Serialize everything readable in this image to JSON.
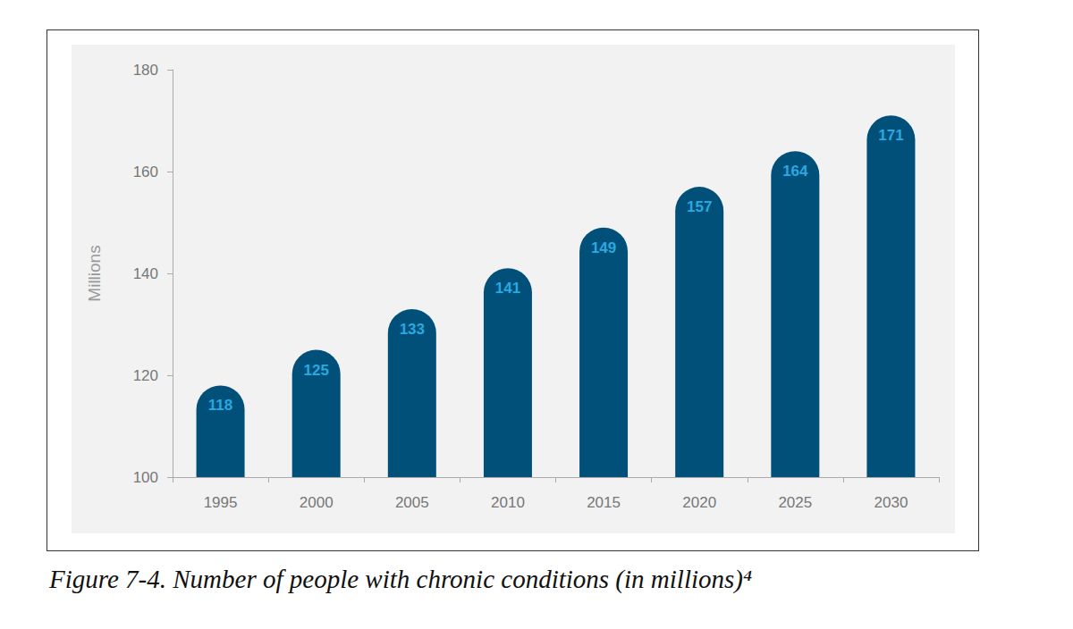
{
  "chart_data": {
    "type": "bar",
    "title": "Figure 7-4. Number of people with chronic conditions (in millions)⁴",
    "y_label": "Millions",
    "categories": [
      "1995",
      "2000",
      "2005",
      "2010",
      "2015",
      "2020",
      "2025",
      "2030"
    ],
    "values": [
      118,
      125,
      133,
      141,
      149,
      157,
      164,
      171
    ],
    "color": "#01507a",
    "ylim": [
      100,
      180
    ],
    "yticks": [
      100,
      120,
      140,
      160,
      180
    ],
    "grid": false,
    "data_labels": true
  }
}
